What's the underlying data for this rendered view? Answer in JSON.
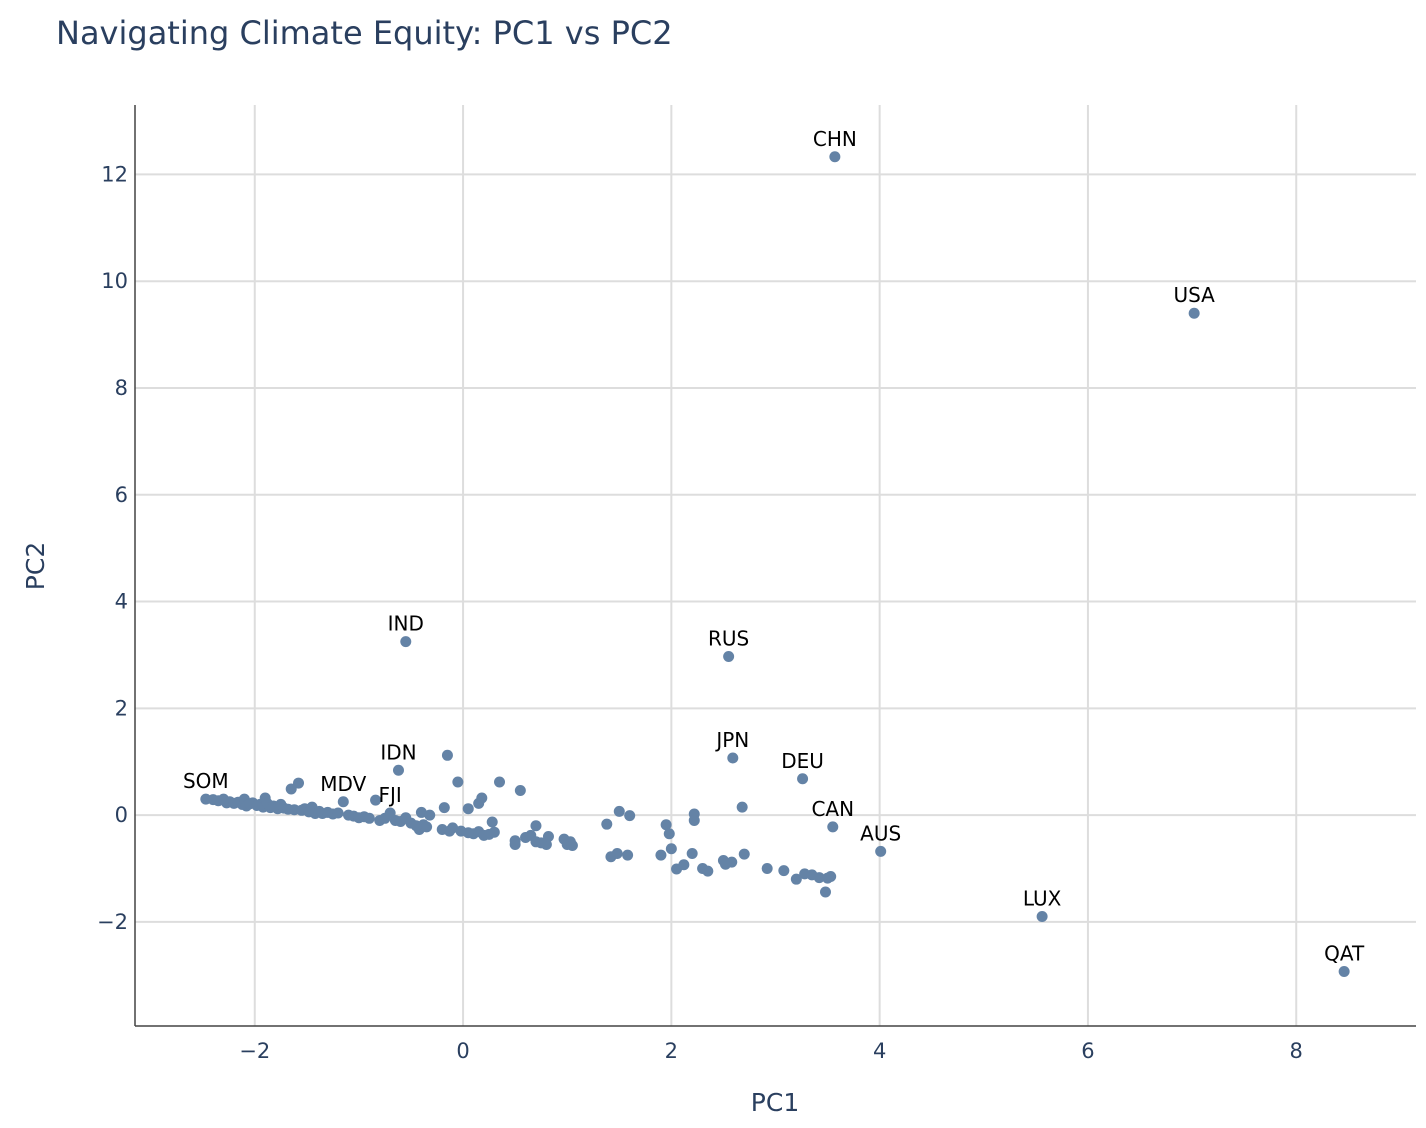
{
  "chart_data": {
    "type": "scatter",
    "title": "Navigating Climate Equity: PC1 vs PC2",
    "xlabel": "PC1",
    "ylabel": "PC2",
    "xlim": [
      -3.15,
      9.15
    ],
    "ylim": [
      -3.95,
      13.3
    ],
    "x_ticks": [
      -2,
      0,
      2,
      4,
      6,
      8
    ],
    "y_ticks": [
      -2,
      0,
      2,
      4,
      6,
      8,
      10,
      12
    ],
    "grid": true,
    "legend": "none",
    "marker_color": "#6483a6",
    "labeled_points": [
      {
        "label": "CHN",
        "x": 3.57,
        "y": 12.33
      },
      {
        "label": "USA",
        "x": 7.02,
        "y": 9.4
      },
      {
        "label": "IND",
        "x": -0.55,
        "y": 3.25
      },
      {
        "label": "RUS",
        "x": 2.55,
        "y": 2.97
      },
      {
        "label": "IDN",
        "x": -0.62,
        "y": 0.84
      },
      {
        "label": "JPN",
        "x": 2.59,
        "y": 1.07
      },
      {
        "label": "DEU",
        "x": 3.26,
        "y": 0.68
      },
      {
        "label": "SOM",
        "x": -2.47,
        "y": 0.3
      },
      {
        "label": "MDV",
        "x": -1.15,
        "y": 0.25
      },
      {
        "label": "FJI",
        "x": -0.7,
        "y": 0.04
      },
      {
        "label": "CAN",
        "x": 3.55,
        "y": -0.22
      },
      {
        "label": "AUS",
        "x": 4.01,
        "y": -0.68
      },
      {
        "label": "LUX",
        "x": 5.56,
        "y": -1.9
      },
      {
        "label": "QAT",
        "x": 8.46,
        "y": -2.93
      }
    ],
    "points": [
      {
        "x": -2.4,
        "y": 0.29
      },
      {
        "x": -2.35,
        "y": 0.27
      },
      {
        "x": -2.3,
        "y": 0.3
      },
      {
        "x": -2.27,
        "y": 0.23
      },
      {
        "x": -2.24,
        "y": 0.25
      },
      {
        "x": -2.2,
        "y": 0.22
      },
      {
        "x": -2.16,
        "y": 0.24
      },
      {
        "x": -2.12,
        "y": 0.2
      },
      {
        "x": -2.1,
        "y": 0.3
      },
      {
        "x": -2.08,
        "y": 0.17
      },
      {
        "x": -2.05,
        "y": 0.21
      },
      {
        "x": -2.02,
        "y": 0.23
      },
      {
        "x": -1.98,
        "y": 0.18
      },
      {
        "x": -1.95,
        "y": 0.2
      },
      {
        "x": -1.92,
        "y": 0.15
      },
      {
        "x": -1.9,
        "y": 0.32
      },
      {
        "x": -1.88,
        "y": 0.22
      },
      {
        "x": -1.85,
        "y": 0.14
      },
      {
        "x": -1.82,
        "y": 0.17
      },
      {
        "x": -1.78,
        "y": 0.12
      },
      {
        "x": -1.75,
        "y": 0.2
      },
      {
        "x": -1.72,
        "y": 0.13
      },
      {
        "x": -1.68,
        "y": 0.11
      },
      {
        "x": -1.65,
        "y": 0.49
      },
      {
        "x": -1.62,
        "y": 0.1
      },
      {
        "x": -1.58,
        "y": 0.6
      },
      {
        "x": -1.55,
        "y": 0.09
      },
      {
        "x": -1.52,
        "y": 0.12
      },
      {
        "x": -1.48,
        "y": 0.06
      },
      {
        "x": -1.45,
        "y": 0.15
      },
      {
        "x": -1.42,
        "y": 0.03
      },
      {
        "x": -1.38,
        "y": 0.07
      },
      {
        "x": -1.35,
        "y": 0.03
      },
      {
        "x": -1.3,
        "y": 0.05
      },
      {
        "x": -1.25,
        "y": 0.02
      },
      {
        "x": -1.2,
        "y": 0.04
      },
      {
        "x": -1.1,
        "y": 0.0
      },
      {
        "x": -1.05,
        "y": -0.02
      },
      {
        "x": -1.0,
        "y": -0.05
      },
      {
        "x": -0.95,
        "y": -0.03
      },
      {
        "x": -0.9,
        "y": -0.06
      },
      {
        "x": -0.84,
        "y": 0.28
      },
      {
        "x": -0.8,
        "y": -0.1
      },
      {
        "x": -0.75,
        "y": -0.06
      },
      {
        "x": -0.65,
        "y": -0.1
      },
      {
        "x": -0.6,
        "y": -0.12
      },
      {
        "x": -0.55,
        "y": -0.05
      },
      {
        "x": -0.5,
        "y": -0.15
      },
      {
        "x": -0.45,
        "y": -0.2
      },
      {
        "x": -0.42,
        "y": -0.27
      },
      {
        "x": -0.4,
        "y": 0.05
      },
      {
        "x": -0.38,
        "y": -0.18
      },
      {
        "x": -0.35,
        "y": -0.22
      },
      {
        "x": -0.32,
        "y": 0.0
      },
      {
        "x": -0.2,
        "y": -0.27
      },
      {
        "x": -0.15,
        "y": 1.12
      },
      {
        "x": -0.13,
        "y": -0.3
      },
      {
        "x": -0.1,
        "y": -0.24
      },
      {
        "x": -0.05,
        "y": 0.62
      },
      {
        "x": -0.02,
        "y": -0.3
      },
      {
        "x": 0.05,
        "y": -0.33
      },
      {
        "x": 0.1,
        "y": -0.35
      },
      {
        "x": 0.15,
        "y": -0.31
      },
      {
        "x": 0.2,
        "y": -0.38
      },
      {
        "x": 0.05,
        "y": 0.12
      },
      {
        "x": -0.18,
        "y": 0.14
      },
      {
        "x": 0.15,
        "y": 0.22
      },
      {
        "x": 0.18,
        "y": 0.32
      },
      {
        "x": 0.25,
        "y": -0.36
      },
      {
        "x": 0.28,
        "y": -0.13
      },
      {
        "x": 0.3,
        "y": -0.32
      },
      {
        "x": 0.35,
        "y": 0.62
      },
      {
        "x": 0.5,
        "y": -0.48
      },
      {
        "x": 0.5,
        "y": -0.55
      },
      {
        "x": 0.55,
        "y": 0.46
      },
      {
        "x": 0.6,
        "y": -0.42
      },
      {
        "x": 0.65,
        "y": -0.38
      },
      {
        "x": 0.7,
        "y": -0.5
      },
      {
        "x": 0.7,
        "y": -0.2
      },
      {
        "x": 0.75,
        "y": -0.52
      },
      {
        "x": 0.8,
        "y": -0.55
      },
      {
        "x": 0.82,
        "y": -0.4
      },
      {
        "x": 0.97,
        "y": -0.45
      },
      {
        "x": 1.0,
        "y": -0.55
      },
      {
        "x": 1.03,
        "y": -0.5
      },
      {
        "x": 1.05,
        "y": -0.57
      },
      {
        "x": 1.38,
        "y": -0.17
      },
      {
        "x": 1.42,
        "y": -0.78
      },
      {
        "x": 1.48,
        "y": -0.72
      },
      {
        "x": 1.5,
        "y": 0.07
      },
      {
        "x": 1.58,
        "y": -0.75
      },
      {
        "x": 1.6,
        "y": -0.01
      },
      {
        "x": 1.9,
        "y": -0.75
      },
      {
        "x": 1.95,
        "y": -0.18
      },
      {
        "x": 1.98,
        "y": -0.35
      },
      {
        "x": 2.0,
        "y": -0.63
      },
      {
        "x": 2.05,
        "y": -1.01
      },
      {
        "x": 2.12,
        "y": -0.93
      },
      {
        "x": 2.2,
        "y": -0.72
      },
      {
        "x": 2.22,
        "y": 0.02
      },
      {
        "x": 2.22,
        "y": -0.1
      },
      {
        "x": 2.3,
        "y": -1.0
      },
      {
        "x": 2.35,
        "y": -1.05
      },
      {
        "x": 2.5,
        "y": -0.85
      },
      {
        "x": 2.52,
        "y": -0.92
      },
      {
        "x": 2.58,
        "y": -0.88
      },
      {
        "x": 2.68,
        "y": 0.15
      },
      {
        "x": 2.7,
        "y": -0.73
      },
      {
        "x": 2.92,
        "y": -1.0
      },
      {
        "x": 3.08,
        "y": -1.04
      },
      {
        "x": 3.2,
        "y": -1.2
      },
      {
        "x": 3.28,
        "y": -1.1
      },
      {
        "x": 3.35,
        "y": -1.12
      },
      {
        "x": 3.42,
        "y": -1.17
      },
      {
        "x": 3.48,
        "y": -1.44
      },
      {
        "x": 3.5,
        "y": -1.18
      },
      {
        "x": 3.53,
        "y": -1.15
      }
    ]
  }
}
